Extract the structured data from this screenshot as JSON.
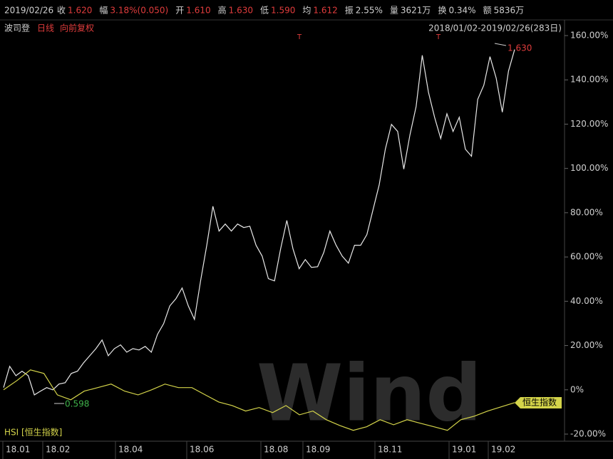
{
  "header": {
    "date": "2019/02/26",
    "fields": [
      {
        "label": "收",
        "value": "1.620",
        "color": "#e03c3c"
      },
      {
        "label": "幅",
        "value": "3.18%(0.050)",
        "color": "#e03c3c"
      },
      {
        "label": "开",
        "value": "1.610",
        "color": "#e03c3c"
      },
      {
        "label": "高",
        "value": "1.630",
        "color": "#e03c3c"
      },
      {
        "label": "低",
        "value": "1.590",
        "color": "#e03c3c"
      },
      {
        "label": "均",
        "value": "1.612",
        "color": "#e03c3c"
      },
      {
        "label": "振",
        "value": "2.55%",
        "color": "#d0d0d0"
      },
      {
        "label": "量",
        "value": "3621万",
        "color": "#d0d0d0"
      },
      {
        "label": "换",
        "value": "0.34%",
        "color": "#d0d0d0"
      },
      {
        "label": "额",
        "value": "5836万",
        "color": "#d0d0d0"
      }
    ]
  },
  "subheader": {
    "name": "波司登",
    "period": "日线",
    "adjust": "向前复权",
    "range": "2018/01/02-2019/02/26(283日)"
  },
  "chart_data": {
    "type": "line",
    "ylim": [
      -20,
      160
    ],
    "yticks": [
      {
        "value": 160,
        "label": "160.00%"
      },
      {
        "value": 140,
        "label": "140.00%"
      },
      {
        "value": 120,
        "label": "120.00%"
      },
      {
        "value": 100,
        "label": "100.00%"
      },
      {
        "value": 80,
        "label": "80.00%"
      },
      {
        "value": 60,
        "label": "60.00%"
      },
      {
        "value": 40,
        "label": "40.00%"
      },
      {
        "value": 20,
        "label": "20.00%"
      },
      {
        "value": 0,
        "label": "0%"
      },
      {
        "value": -20,
        "label": "-20.00%"
      }
    ],
    "xtick_labels": [
      "18.01",
      "18.02",
      "18.04",
      "18.06",
      "18.08",
      "18.09",
      "18.11",
      "19.01",
      "19.02"
    ],
    "series": [
      {
        "name": "波司登",
        "color": "#e8e8e8",
        "values": [
          1.0,
          10.6,
          6.4,
          8.4,
          6.4,
          -2.3,
          -0.6,
          1.0,
          0,
          2.6,
          3.2,
          7.4,
          8.4,
          12.2,
          15.4,
          18.6,
          22.5,
          15.4,
          18.6,
          20.3,
          17.0,
          18.6,
          18.0,
          19.6,
          17.0,
          25.1,
          29.9,
          37.9,
          41.2,
          46.0,
          37.9,
          31.8,
          49.2,
          65.3,
          82.9,
          71.7,
          74.9,
          71.7,
          74.9,
          73.3,
          73.9,
          65.3,
          60.4,
          50.2,
          49.2,
          63.7,
          76.5,
          63.7,
          54.7,
          58.8,
          55.3,
          55.6,
          62.0,
          71.7,
          65.3,
          60.4,
          57.2,
          65.3,
          65.3,
          70.1,
          81.3,
          92.6,
          108.7,
          119.9,
          116.7,
          99.7,
          115.1,
          128.0,
          151.1,
          134.4,
          123.1,
          113.5,
          124.7,
          116.7,
          123.1,
          108.7,
          105.5,
          131.2,
          137.6,
          150.5,
          140.8,
          125.4,
          144.0,
          153.7
        ]
      },
      {
        "name": "HSI [恒生指数]",
        "color": "#d4d44a",
        "values": [
          0,
          4.2,
          9.0,
          7.4,
          -2.3,
          -4.5,
          -0.6,
          1.0,
          2.6,
          -0.6,
          -2.3,
          0,
          2.6,
          1.0,
          1.0,
          -2.3,
          -5.5,
          -7.1,
          -9.6,
          -8.0,
          -10.3,
          -7.1,
          -11.3,
          -9.6,
          -13.5,
          -16.1,
          -18.3,
          -16.7,
          -13.5,
          -15.8,
          -13.5,
          -15.1,
          -16.7,
          -18.3,
          -13.5,
          -11.9,
          -9.6,
          -7.7,
          -5.8
        ]
      }
    ],
    "series_tag": "恒生指数",
    "annotations": {
      "min_label": "0.598",
      "max_label": "1.630",
      "event_markers": [
        "T",
        "T"
      ]
    },
    "watermark": "Wind"
  }
}
